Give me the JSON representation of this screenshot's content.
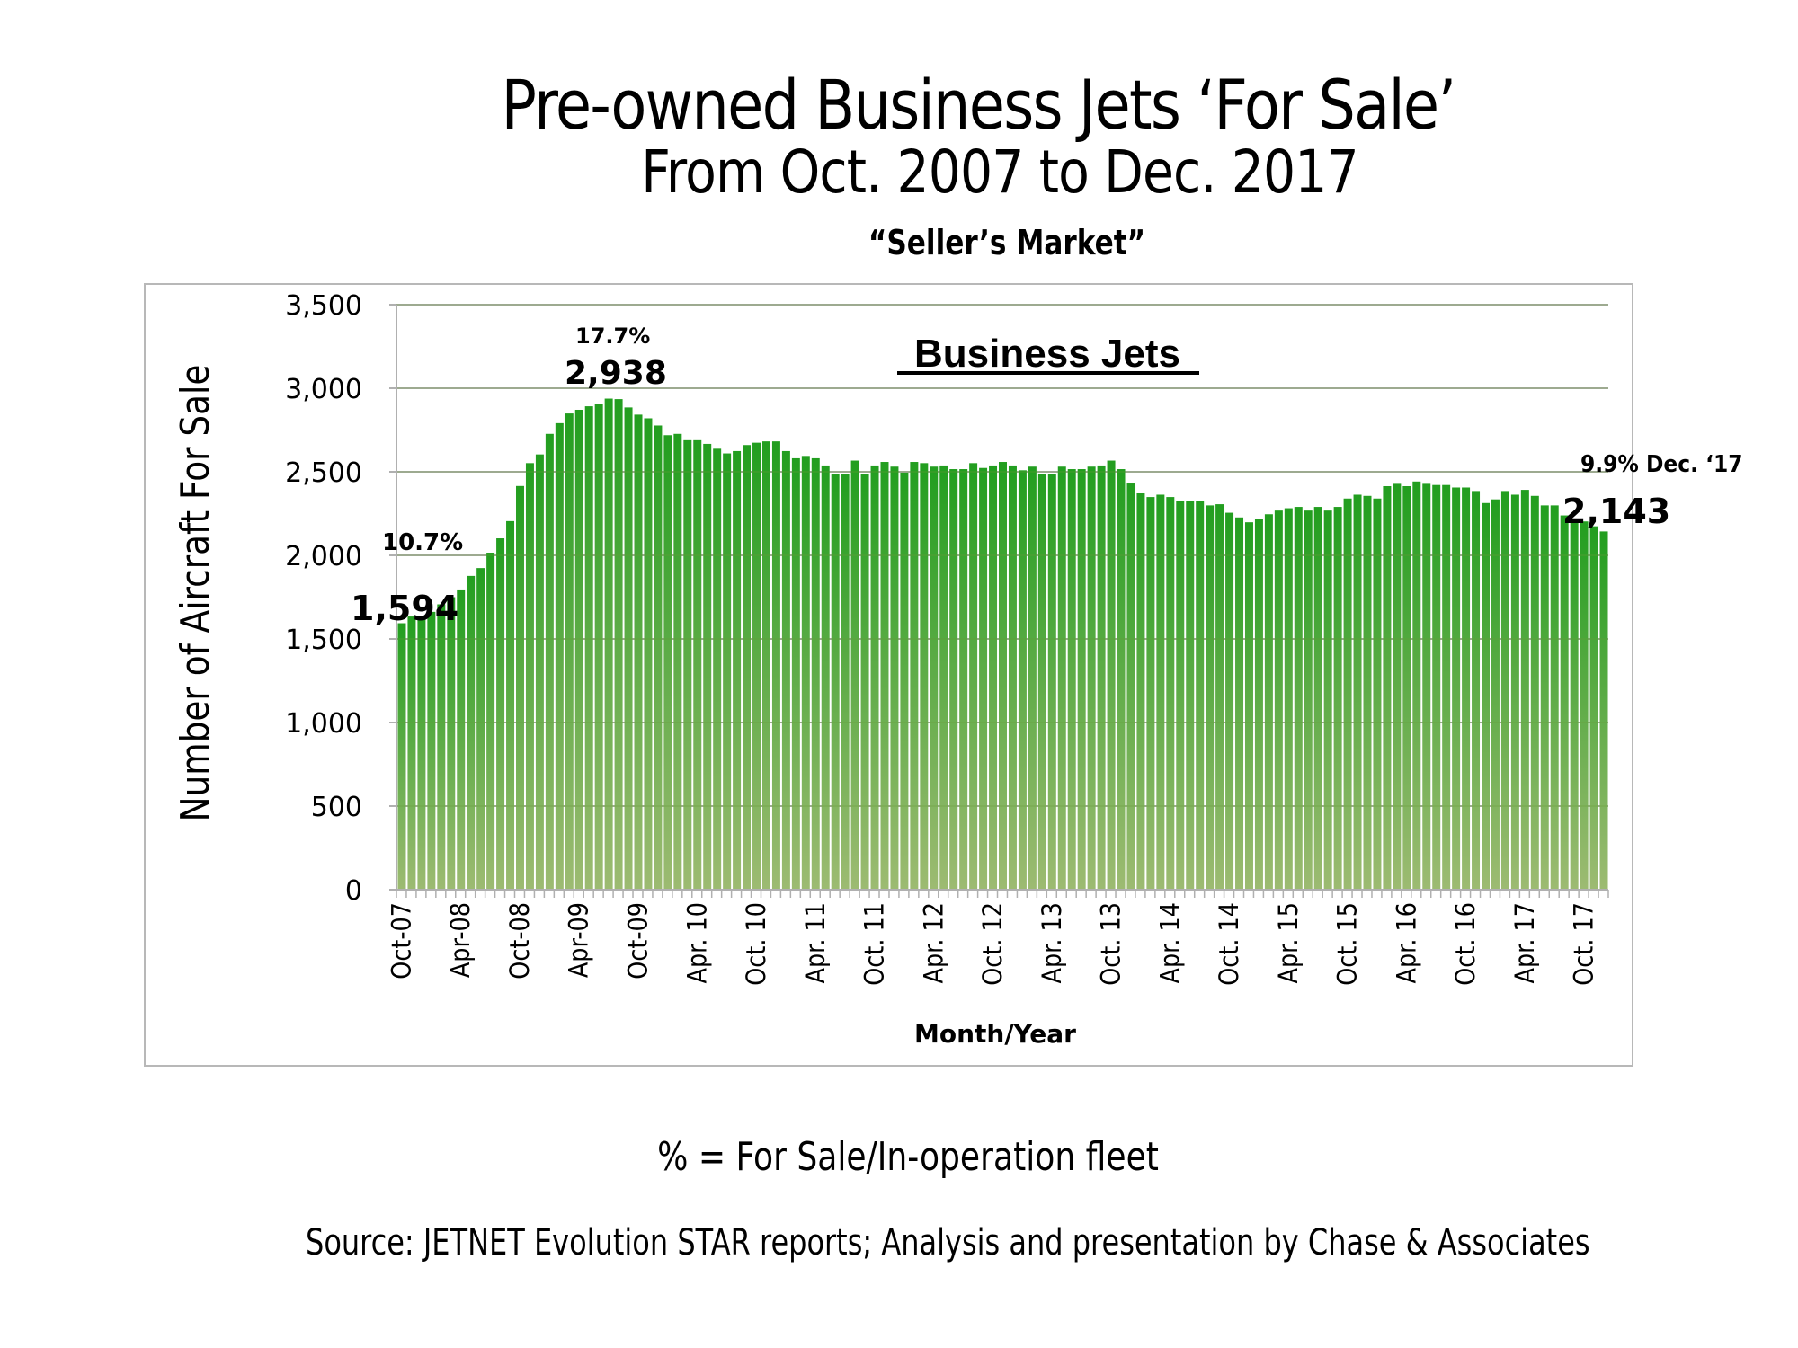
{
  "header": {
    "title": "Pre-owned Business Jets ‘For Sale’",
    "subtitle": "From Oct. 2007 to Dec. 2017",
    "tagline": "“Seller’s Market”"
  },
  "footer": {
    "footnote": "% = For Sale/In-operation fleet",
    "source": "Source: JETNET Evolution STAR reports; Analysis and presentation by Chase & Associates"
  },
  "colors": {
    "bar_top": "#229e1f",
    "bar_bottom": "#9dbb72",
    "grid": "#b0b0b0",
    "frame": "#b8b8b8",
    "text": "#000000"
  },
  "chart_data": {
    "type": "bar",
    "title": "Business Jets",
    "xlabel": "Month/Year",
    "ylabel": "Number  of Aircraft For Sale",
    "ylim": [
      0,
      3500
    ],
    "yticks": [
      0,
      500,
      1000,
      1500,
      2000,
      2500,
      3000,
      3500
    ],
    "ytick_labels": [
      "0",
      "500",
      "1,000",
      "1,500",
      "2,000",
      "2,500",
      "3,000",
      "3,500"
    ],
    "grid": true,
    "legend": "none",
    "xtick_labels": [
      {
        "index": 0,
        "label": "Oct-07"
      },
      {
        "index": 6,
        "label": "Apr-08"
      },
      {
        "index": 12,
        "label": "Oct-08"
      },
      {
        "index": 18,
        "label": "Apr-09"
      },
      {
        "index": 24,
        "label": "Oct-09"
      },
      {
        "index": 30,
        "label": "Apr. 10"
      },
      {
        "index": 36,
        "label": "Oct. 10"
      },
      {
        "index": 42,
        "label": "Apr. 11"
      },
      {
        "index": 48,
        "label": "Oct. 11"
      },
      {
        "index": 54,
        "label": "Apr. 12"
      },
      {
        "index": 60,
        "label": "Oct. 12"
      },
      {
        "index": 66,
        "label": "Apr. 13"
      },
      {
        "index": 72,
        "label": "Oct. 13"
      },
      {
        "index": 78,
        "label": "Apr. 14"
      },
      {
        "index": 84,
        "label": "Oct. 14"
      },
      {
        "index": 90,
        "label": "Apr. 15"
      },
      {
        "index": 96,
        "label": "Oct. 15"
      },
      {
        "index": 102,
        "label": "Apr. 16"
      },
      {
        "index": 108,
        "label": "Oct. 16"
      },
      {
        "index": 114,
        "label": "Apr. 17"
      },
      {
        "index": 120,
        "label": "Oct. 17"
      }
    ],
    "x_start": "Oct 2007",
    "x_end": "Dec 2017",
    "series": [
      {
        "name": "Business Jets For Sale",
        "values": [
          1594,
          1634,
          1634,
          1662,
          1707,
          1750,
          1796,
          1877,
          1924,
          2016,
          2102,
          2205,
          2415,
          2552,
          2604,
          2727,
          2791,
          2849,
          2871,
          2892,
          2906,
          2938,
          2935,
          2885,
          2842,
          2820,
          2777,
          2719,
          2727,
          2689,
          2689,
          2667,
          2638,
          2610,
          2624,
          2660,
          2674,
          2682,
          2682,
          2624,
          2581,
          2595,
          2581,
          2538,
          2486,
          2486,
          2567,
          2486,
          2538,
          2559,
          2531,
          2495,
          2559,
          2552,
          2531,
          2538,
          2516,
          2516,
          2552,
          2523,
          2538,
          2559,
          2538,
          2509,
          2531,
          2486,
          2486,
          2531,
          2516,
          2516,
          2531,
          2538,
          2567,
          2516,
          2430,
          2371,
          2349,
          2363,
          2349,
          2327,
          2327,
          2327,
          2299,
          2306,
          2255,
          2227,
          2198,
          2219,
          2246,
          2268,
          2282,
          2290,
          2268,
          2290,
          2268,
          2290,
          2340,
          2363,
          2356,
          2340,
          2414,
          2428,
          2414,
          2442,
          2428,
          2421,
          2421,
          2406,
          2406,
          2385,
          2313,
          2335,
          2385,
          2363,
          2392,
          2356,
          2299,
          2299,
          2239,
          2218,
          2203,
          2174,
          2143
        ]
      }
    ],
    "annotations": [
      {
        "name": "start-pct",
        "text": "10.7%",
        "index": 0
      },
      {
        "name": "start-value",
        "text": "1,594",
        "index": 0
      },
      {
        "name": "peak-pct",
        "text": "17.7%",
        "index": 21
      },
      {
        "name": "peak-value",
        "text": "2,938",
        "index": 21
      },
      {
        "name": "end-pct",
        "text": "9.9% Dec. ‘17",
        "index": 122
      },
      {
        "name": "end-value",
        "text": "2,143",
        "index": 122
      }
    ]
  }
}
